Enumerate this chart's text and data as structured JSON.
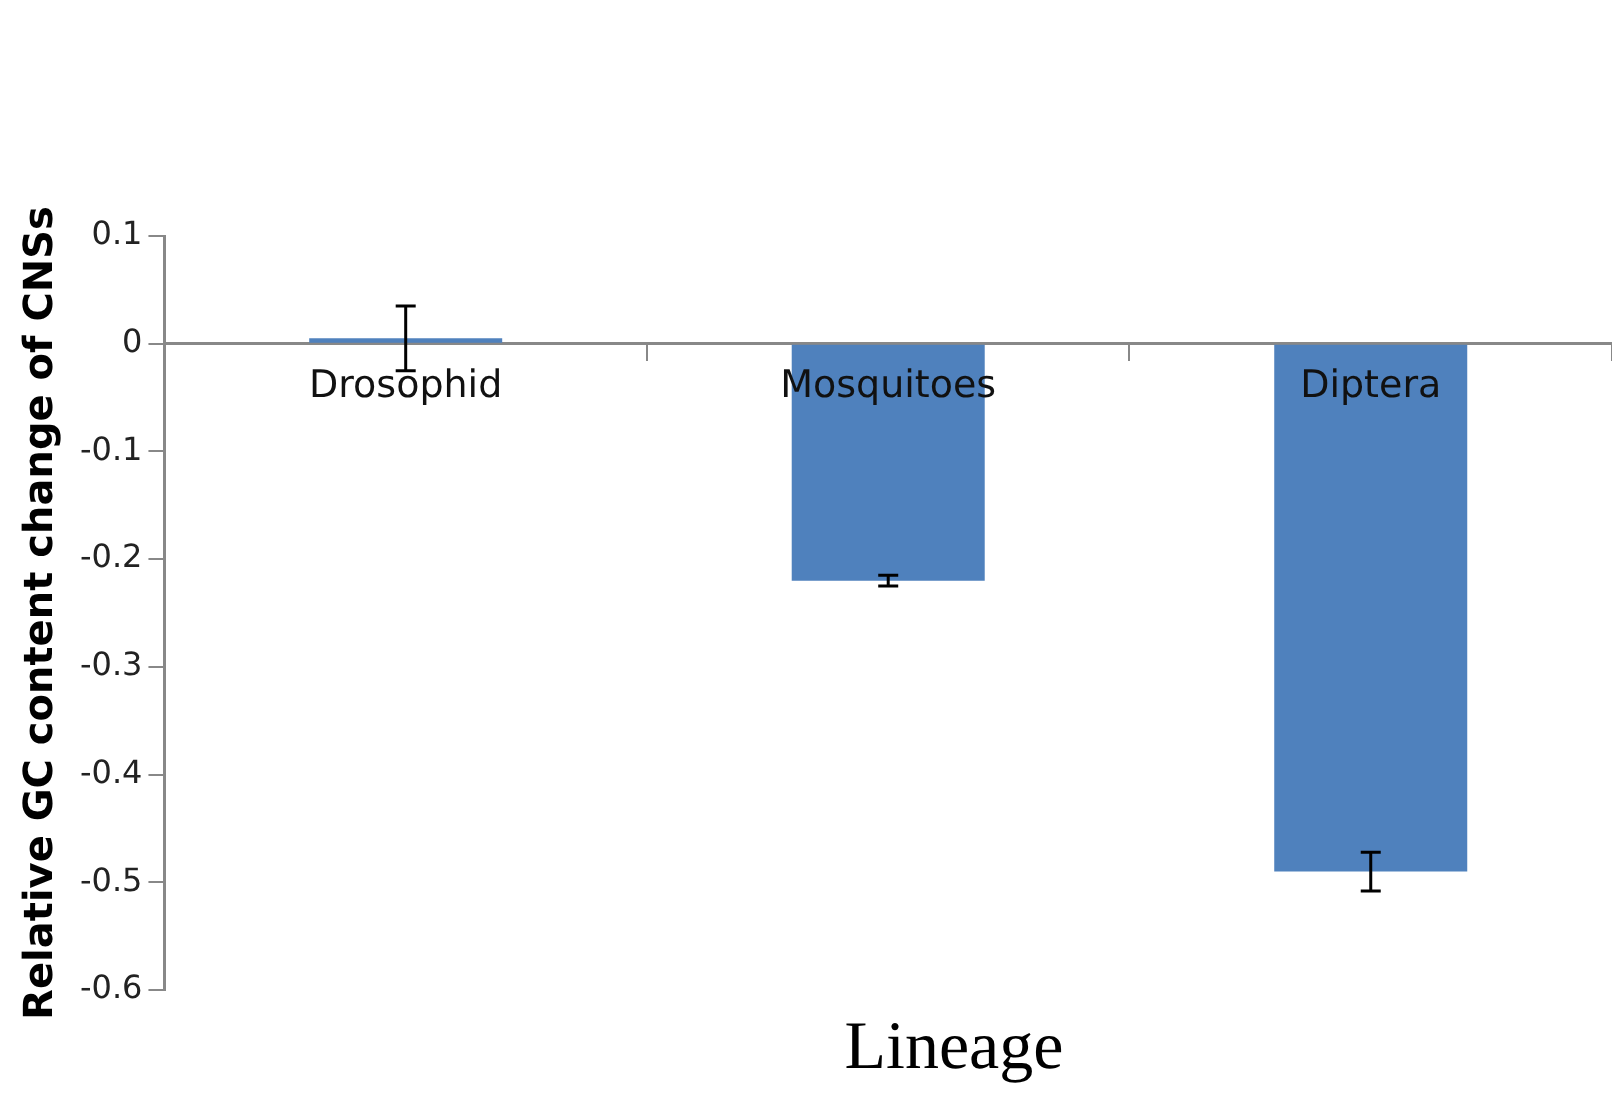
{
  "chart_data": {
    "type": "bar",
    "categories": [
      "Drosophid",
      "Mosquitoes",
      "Diptera"
    ],
    "values": [
      0.005,
      -0.22,
      -0.49
    ],
    "errors": [
      0.03,
      0.005,
      0.018
    ],
    "color": "#4f81bd",
    "ylim": [
      -0.6,
      0.1
    ],
    "yticks": [
      -0.6,
      -0.5,
      -0.4,
      -0.3,
      -0.2,
      -0.1,
      0,
      0.1
    ],
    "ylabel": "Relative GC content change of CNSs",
    "xlabel": "Lineage",
    "grid": false,
    "legend": false
  }
}
